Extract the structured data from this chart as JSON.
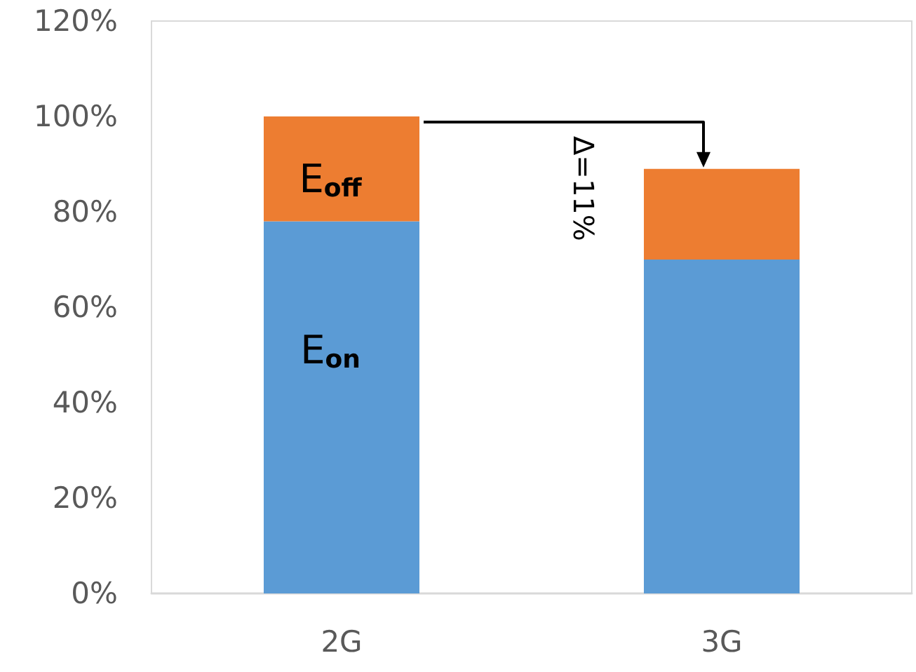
{
  "chart_data": {
    "type": "bar",
    "categories": [
      "2G",
      "3G"
    ],
    "series": [
      {
        "name": "E$_{on}$",
        "color": "#5b9bd5",
        "values": [
          78,
          70
        ]
      },
      {
        "name": "E$_{off}$",
        "color": "#ed7d31",
        "values": [
          22,
          19
        ]
      }
    ],
    "stacked": true,
    "ylim": [
      0,
      120
    ],
    "yticks": [
      {
        "value": 0,
        "label": "0%"
      },
      {
        "value": 20,
        "label": "20%"
      },
      {
        "value": 40,
        "label": "40%"
      },
      {
        "value": 60,
        "label": "60%"
      },
      {
        "value": 80,
        "label": "80%"
      },
      {
        "value": 100,
        "label": "100%"
      },
      {
        "value": 120,
        "label": "120%"
      }
    ],
    "grid": false,
    "legend": false,
    "annotations": [
      "Δ=11%"
    ]
  }
}
